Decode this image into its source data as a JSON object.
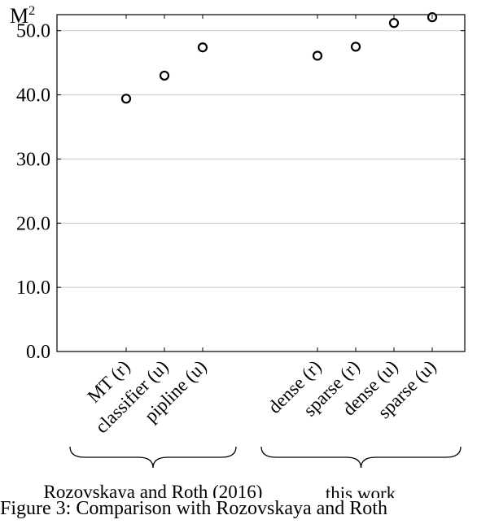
{
  "chart_data": {
    "type": "scatter",
    "ylabel": "M",
    "ylabel_sup": "2",
    "ylim": [
      0,
      52.5
    ],
    "yticks": [
      "0.0",
      "10.0",
      "20.0",
      "30.0",
      "40.0",
      "50.0"
    ],
    "grid": true,
    "categories": [
      "MT (r)",
      "classifier (u)",
      "pipline (u)",
      "dense (r)",
      "sparse (r)",
      "dense (u)",
      "sparse (u)"
    ],
    "values": [
      39.4,
      43.0,
      47.4,
      46.1,
      47.5,
      51.2,
      52.1
    ],
    "groups": [
      {
        "label": "Rozovskaya and Roth (2016)",
        "members": [
          "MT (r)",
          "classifier (u)",
          "pipline (u)"
        ]
      },
      {
        "label": "this work",
        "members": [
          "dense (r)",
          "sparse (r)",
          "dense (u)",
          "sparse (u)"
        ]
      }
    ]
  },
  "caption": "Figure 3:  Comparison with Rozovskaya and Roth"
}
